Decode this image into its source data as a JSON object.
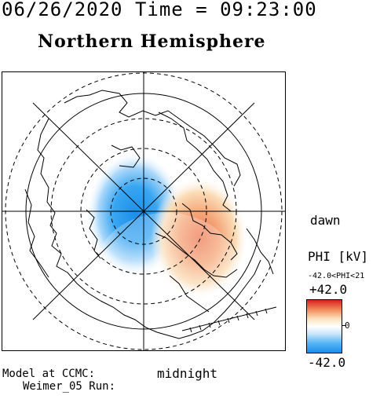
{
  "header": {
    "datetime": "06/26/2020 Time = 09:23:00"
  },
  "title": "Northern Hemisphere",
  "orientation": {
    "dawn": "dawn",
    "midnight": "midnight"
  },
  "model": {
    "line1": "Model at CCMC:",
    "line2": "Weimer_05 Run:"
  },
  "colorbar": {
    "title": "PHI [kV]",
    "range_note": "-42.0<PHI<21",
    "max_label": "+42.0",
    "min_label": "-42.0",
    "zero_label": "0",
    "colors": {
      "high": "#d92020",
      "mid": "#ffffff",
      "low": "#1b8fe8"
    }
  },
  "map": {
    "projection": "polar, north pole centered",
    "potential_cells": [
      {
        "sign": "negative",
        "color": "#1b8fe8"
      },
      {
        "sign": "positive",
        "color": "#f08a5a"
      }
    ]
  }
}
